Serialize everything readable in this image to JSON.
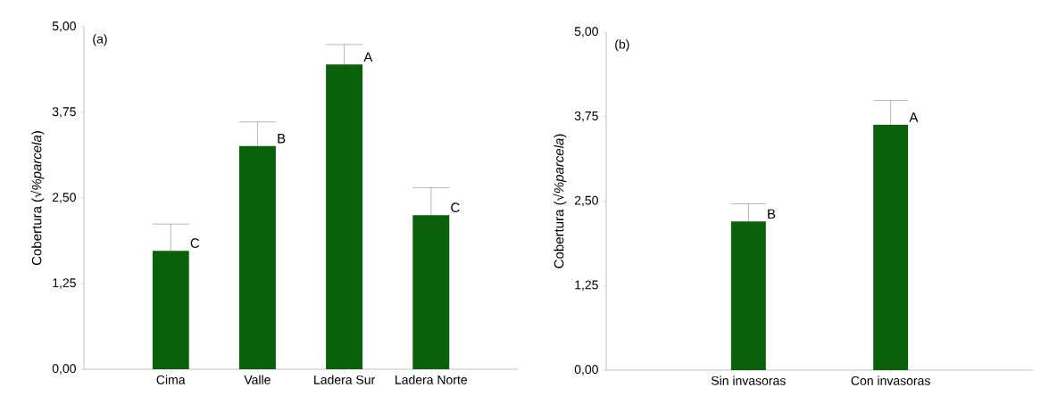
{
  "chart_data": [
    {
      "type": "bar",
      "ylabel": "Cobertura (√*%parcela*)",
      "categories": [
        "Cima",
        "Valle",
        "Ladera Sur",
        "Ladera Norte"
      ],
      "values": [
        1.73,
        3.26,
        4.45,
        2.25
      ],
      "color": "#0b610b",
      "errors": [
        [
          1.73,
          2.12
        ],
        [
          3.26,
          3.61
        ],
        [
          4.45,
          4.74
        ],
        [
          2.25,
          2.65
        ]
      ],
      "ylim": [
        0,
        5
      ],
      "yticks": [
        {
          "value": 0,
          "label": "0,00"
        },
        {
          "value": 1.25,
          "label": "1,25"
        },
        {
          "value": 2.5,
          "label": "2,50"
        },
        {
          "value": 3.75,
          "label": "3,75"
        },
        {
          "value": 5,
          "label": "5,00"
        }
      ],
      "annotations": [
        "(a)",
        {
          "text": "C",
          "x": "Cima",
          "y": 1.73
        },
        {
          "text": "B",
          "x": "Valle",
          "y": 3.26
        },
        {
          "text": "A",
          "x": "Ladera Sur",
          "y": 4.45
        },
        {
          "text": "C",
          "x": "Ladera Norte",
          "y": 2.25
        }
      ]
    },
    {
      "type": "bar",
      "ylabel": "Cobertura (√*%parcela*)",
      "categories": [
        "Sin invasoras",
        "Con invasoras"
      ],
      "values": [
        2.2,
        3.63
      ],
      "color": "#0b610b",
      "errors": [
        [
          2.2,
          2.46
        ],
        [
          3.63,
          3.99
        ]
      ],
      "ylim": [
        0,
        5
      ],
      "yticks": [
        {
          "value": 0,
          "label": "0,00"
        },
        {
          "value": 1.25,
          "label": "1,25"
        },
        {
          "value": 2.5,
          "label": "2,50"
        },
        {
          "value": 3.75,
          "label": "3,75"
        },
        {
          "value": 5,
          "label": "5,00"
        }
      ],
      "annotations": [
        "(b)",
        {
          "text": "B",
          "x": "Sin invasoras",
          "y": 2.2
        },
        {
          "text": "A",
          "x": "Con invasoras",
          "y": 3.63
        }
      ]
    }
  ]
}
